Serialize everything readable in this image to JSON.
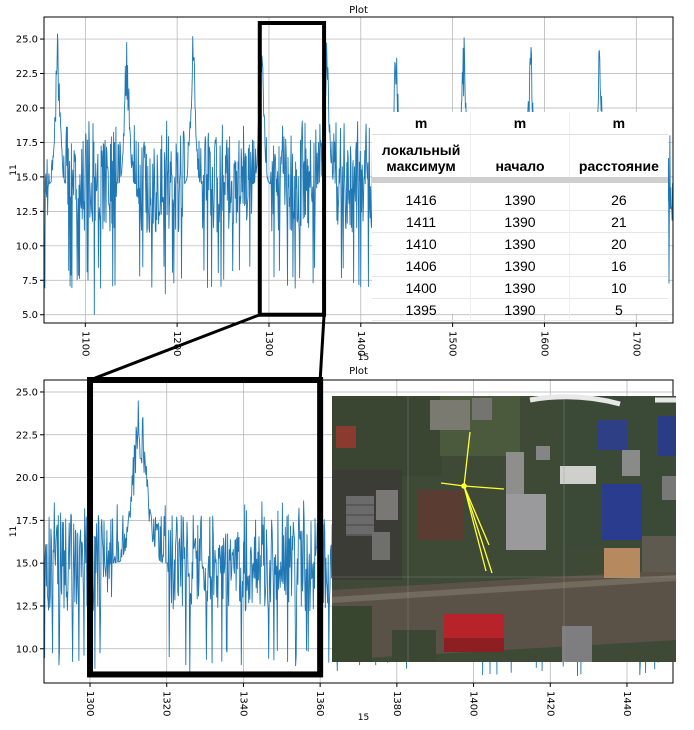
{
  "chart_data": [
    {
      "type": "line",
      "title": "Plot",
      "xlabel": "15",
      "ylabel": "11",
      "xlim": [
        1055,
        1740
      ],
      "ylim": [
        4.4,
        26.6
      ],
      "xticks": [
        1100,
        1200,
        1300,
        1400,
        1500,
        1600,
        1700
      ],
      "yticks": [
        5.0,
        7.5,
        10.0,
        12.5,
        15.0,
        17.5,
        20.0,
        22.5,
        25.0
      ],
      "grid": true,
      "baseline": {
        "low": 8.5,
        "high": 18.0,
        "mean": 14.5
      },
      "peaks": [
        {
          "x": 1070,
          "y": 25.5
        },
        {
          "x": 1145,
          "y": 25.5
        },
        {
          "x": 1217,
          "y": 25.5
        },
        {
          "x": 1292,
          "y": 25.5
        },
        {
          "x": 1363,
          "y": 25.5
        },
        {
          "x": 1438,
          "y": 25.0
        },
        {
          "x": 1512,
          "y": 25.5
        },
        {
          "x": 1585,
          "y": 25.0
        },
        {
          "x": 1660,
          "y": 25.0
        }
      ],
      "dips": [
        5.0,
        6.5,
        7.0
      ],
      "highlight_range": {
        "x": [
          1290,
          1360
        ],
        "y": [
          5.0,
          26.2
        ]
      }
    },
    {
      "type": "line",
      "title": "Plot",
      "xlabel": "15",
      "ylabel": "11",
      "xlim": [
        1288,
        1452
      ],
      "ylim": [
        8.0,
        25.7
      ],
      "xticks": [
        1300,
        1320,
        1340,
        1360,
        1380,
        1400,
        1420,
        1440
      ],
      "yticks": [
        10.0,
        12.5,
        15.0,
        17.5,
        20.0,
        22.5,
        25.0
      ],
      "grid": true,
      "baseline": {
        "low": 10.0,
        "high": 17.5,
        "mean": 15.0
      },
      "peaks": [
        {
          "x": 1313,
          "y": 25.5
        },
        {
          "x": 1390,
          "y": 25.5
        }
      ],
      "highlight_range": {
        "x": [
          1300,
          1360
        ],
        "y": [
          8.5,
          25.5
        ]
      }
    }
  ],
  "table": {
    "units": [
      "m",
      "m",
      "m"
    ],
    "headers": [
      "локальный максимум",
      "начало",
      "расстояние"
    ],
    "rows": [
      [
        "1416",
        "1390",
        "26"
      ],
      [
        "1411",
        "1390",
        "21"
      ],
      [
        "1410",
        "1390",
        "20"
      ],
      [
        "1406",
        "1390",
        "16"
      ],
      [
        "1400",
        "1390",
        "10"
      ],
      [
        "1395",
        "1390",
        "5"
      ]
    ]
  },
  "colors": {
    "line": "#1f77b4",
    "grid": "#b0b0b0",
    "frame": "#000000",
    "overlay_marker": "#ffff33"
  },
  "overlay": {
    "kind": "satellite-map-image",
    "marker": "yellow-point-with-rays"
  }
}
